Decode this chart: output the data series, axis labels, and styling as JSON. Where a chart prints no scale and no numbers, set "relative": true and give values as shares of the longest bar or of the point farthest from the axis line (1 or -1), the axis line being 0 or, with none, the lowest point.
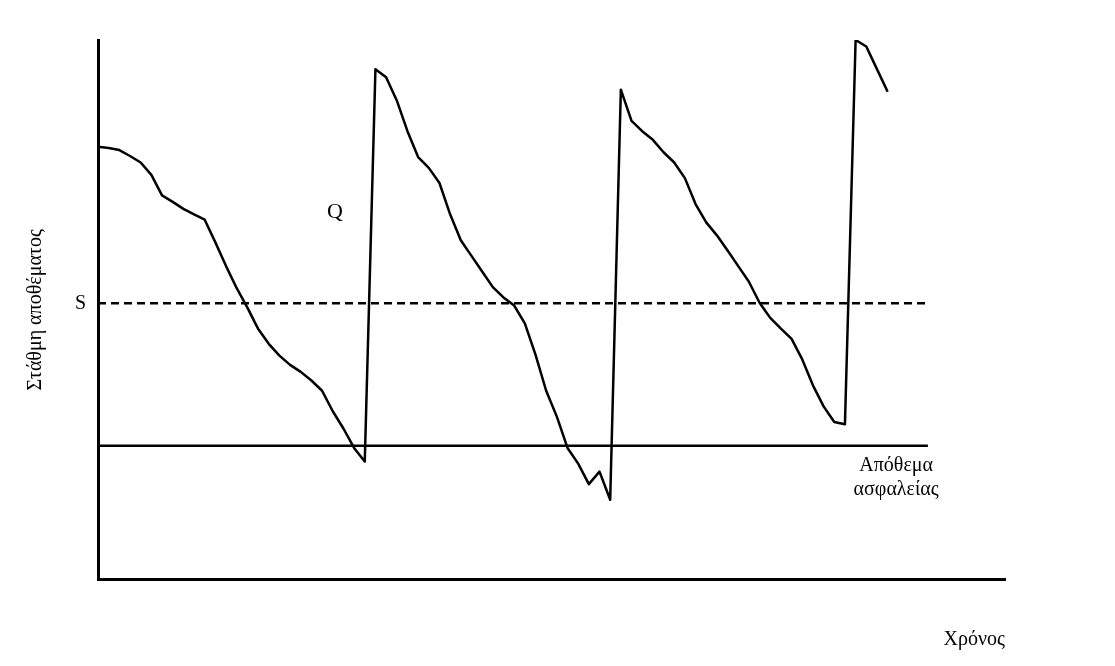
{
  "chart_data": {
    "type": "line",
    "relative": true,
    "xlabel": "Χρόνος",
    "ylabel": "Στάθμη αποθέματος",
    "color": "#000000",
    "marker": "none",
    "grid": false,
    "legend": false,
    "categories": [
      null,
      null,
      null,
      null,
      null,
      null,
      null,
      null,
      null,
      null,
      null,
      null,
      null,
      null,
      null,
      null,
      null,
      null,
      null,
      null,
      null,
      null,
      null,
      null,
      null,
      null,
      null,
      null,
      null,
      null,
      null,
      null,
      null,
      null,
      null,
      null,
      null,
      null,
      null,
      null,
      null,
      null,
      null,
      null,
      null,
      null,
      null,
      null,
      null,
      null,
      null,
      null,
      null,
      null,
      null,
      null,
      null,
      null,
      null,
      null,
      null,
      null,
      null,
      null,
      null,
      null,
      null,
      null,
      null,
      null,
      null,
      null,
      null,
      null,
      null,
      null,
      null,
      null,
      null,
      null,
      null,
      null,
      null,
      null,
      null,
      null
    ],
    "values": [
      0.802,
      0.8,
      0.796,
      0.785,
      0.773,
      0.75,
      0.712,
      0.7,
      0.687,
      0.677,
      0.667,
      0.625,
      0.581,
      0.54,
      0.504,
      0.465,
      0.437,
      0.415,
      0.398,
      0.385,
      0.369,
      0.35,
      0.312,
      0.28,
      0.244,
      0.219,
      0.946,
      0.931,
      0.888,
      0.831,
      0.783,
      0.763,
      0.735,
      0.677,
      0.629,
      0.6,
      0.571,
      0.542,
      0.523,
      0.508,
      0.475,
      0.417,
      0.35,
      0.302,
      0.244,
      0.215,
      0.177,
      0.2,
      0.148,
      0.908,
      0.85,
      0.831,
      0.815,
      0.792,
      0.773,
      0.744,
      0.696,
      0.662,
      0.638,
      0.61,
      0.581,
      0.552,
      0.513,
      0.485,
      0.465,
      0.446,
      0.408,
      0.36,
      0.321,
      0.292,
      0.288,
      1,
      0.988,
      0.946,
      0.904,
      null,
      null,
      null,
      null,
      null,
      null,
      null,
      null,
      null,
      null,
      null
    ],
    "ref_lines": [
      {
        "axis": "y",
        "value": 0.512,
        "label": "S",
        "line_style": "dashed"
      },
      {
        "axis": "y",
        "value": 0.248,
        "label": "Απόθεμα ασφαλείας",
        "line_style": "solid"
      }
    ],
    "annotations": [
      "Q"
    ]
  }
}
